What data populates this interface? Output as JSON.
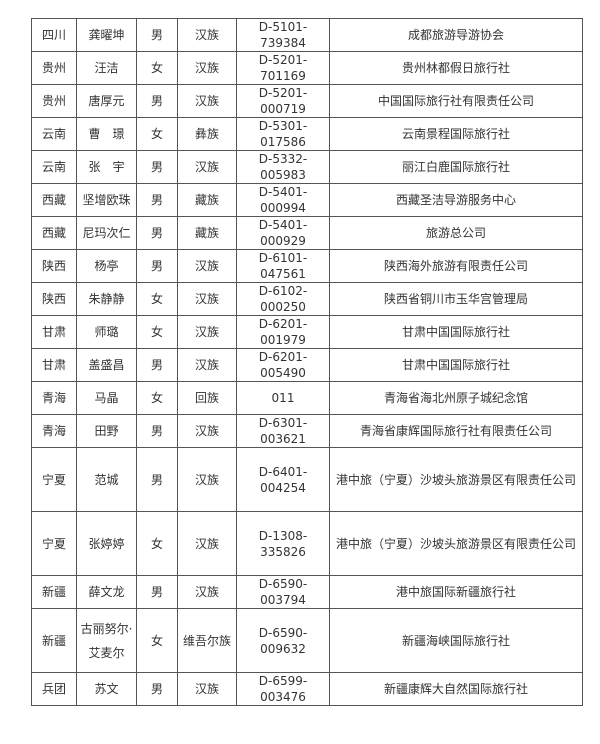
{
  "rows": [
    {
      "province": "四川",
      "name": "龚曜坤",
      "gender": "男",
      "ethnicity": "汉族",
      "id": "D-5101-739384",
      "org": "成都旅游导游协会"
    },
    {
      "province": "贵州",
      "name": "汪洁",
      "gender": "女",
      "ethnicity": "汉族",
      "id": "D-5201-701169",
      "org": "贵州林都假日旅行社"
    },
    {
      "province": "贵州",
      "name": "唐厚元",
      "gender": "男",
      "ethnicity": "汉族",
      "id": "D-5201-000719",
      "org": "中国国际旅行社有限责任公司"
    },
    {
      "province": "云南",
      "name": "曹　璟",
      "gender": "女",
      "ethnicity": "彝族",
      "id": "D-5301-017586",
      "org": "云南景程国际旅行社"
    },
    {
      "province": "云南",
      "name": "张　宇",
      "gender": "男",
      "ethnicity": "汉族",
      "id": "D-5332-005983",
      "org": "丽江白鹿国际旅行社"
    },
    {
      "province": "西藏",
      "name": "坚增欧珠",
      "gender": "男",
      "ethnicity": "藏族",
      "id": "D-5401-000994",
      "org": "西藏圣洁导游服务中心"
    },
    {
      "province": "西藏",
      "name": "尼玛次仁",
      "gender": "男",
      "ethnicity": "藏族",
      "id": "D-5401-000929",
      "org": "旅游总公司"
    },
    {
      "province": "陕西",
      "name": "杨亭",
      "gender": "男",
      "ethnicity": "汉族",
      "id": "D-6101-047561",
      "org": "陕西海外旅游有限责任公司"
    },
    {
      "province": "陕西",
      "name": "朱静静",
      "gender": "女",
      "ethnicity": "汉族",
      "id": "D-6102-000250",
      "org": "陕西省铜川市玉华宫管理局"
    },
    {
      "province": "甘肃",
      "name": "师璐",
      "gender": "女",
      "ethnicity": "汉族",
      "id": "D-6201-001979",
      "org": "甘肃中国国际旅行社"
    },
    {
      "province": "甘肃",
      "name": "盖盛昌",
      "gender": "男",
      "ethnicity": "汉族",
      "id": "D-6201-005490",
      "org": "甘肃中国国际旅行社"
    },
    {
      "province": "青海",
      "name": "马晶",
      "gender": "女",
      "ethnicity": "回族",
      "id": "011",
      "org": "青海省海北州原子城纪念馆"
    },
    {
      "province": "青海",
      "name": "田野",
      "gender": "男",
      "ethnicity": "汉族",
      "id": "D-6301-003621",
      "org": "青海省康辉国际旅行社有限责任公司"
    },
    {
      "province": "宁夏",
      "name": "范城",
      "gender": "男",
      "ethnicity": "汉族",
      "id": "D-6401-004254",
      "org": "港中旅（宁夏）沙坡头旅游景区有限责任公司",
      "tall": true
    },
    {
      "province": "宁夏",
      "name": "张婷婷",
      "gender": "女",
      "ethnicity": "汉族",
      "id": "D-1308-335826",
      "org": "港中旅（宁夏）沙坡头旅游景区有限责任公司",
      "tall": true
    },
    {
      "province": "新疆",
      "name": "薛文龙",
      "gender": "男",
      "ethnicity": "汉族",
      "id": "D-6590-003794",
      "org": "港中旅国际新疆旅行社"
    },
    {
      "province": "新疆",
      "name": "古丽努尔·艾麦尔",
      "gender": "女",
      "ethnicity": "维吾尔族",
      "id": "D-6590-009632",
      "org": "新疆海峡国际旅行社",
      "tall": true
    },
    {
      "province": "兵团",
      "name": "苏文",
      "gender": "男",
      "ethnicity": "汉族",
      "id": "D-6599-003476",
      "org": "新疆康辉大自然国际旅行社"
    }
  ]
}
